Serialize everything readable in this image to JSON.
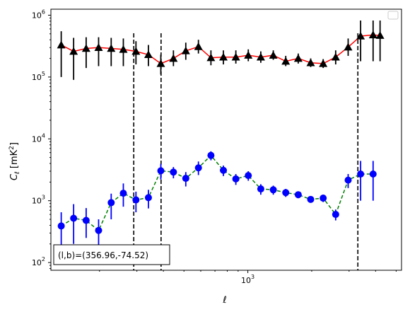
{
  "chart_data": {
    "type": "scatter",
    "title": "",
    "xlabel": "ℓ",
    "ylabel": "C_ℓ  [mK²]",
    "xscale": "log",
    "yscale": "log",
    "xlim": [
      118,
      5300
    ],
    "ylim": [
      75,
      1250000
    ],
    "grid": false,
    "legend": "top-right (empty)",
    "x_ticks": [
      {
        "value": 1000,
        "base": "10",
        "exp": "3"
      }
    ],
    "y_ticks": [
      {
        "value": 100,
        "base": "10",
        "exp": "2"
      },
      {
        "value": 1000,
        "base": "10",
        "exp": "3"
      },
      {
        "value": 10000,
        "base": "10",
        "exp": "4"
      },
      {
        "value": 100000,
        "base": "10",
        "exp": "5"
      },
      {
        "value": 1000000,
        "base": "10",
        "exp": "6"
      }
    ],
    "vlines": [
      290,
      390,
      3300
    ],
    "annotation": "(l,b)=(356.96,-74.52)",
    "series": [
      {
        "marker": "triangle",
        "color": "#000000",
        "line_color": "#ff0000",
        "line_style": "solid",
        "x": [
          132,
          151,
          173,
          198,
          227,
          259,
          297,
          340,
          389,
          446,
          510,
          585,
          670,
          767,
          878,
          1005,
          1151,
          1318,
          1509,
          1728,
          1978,
          2265,
          2594,
          2970,
          3400,
          3894,
          4200
        ],
        "y": [
          330000,
          260000,
          290000,
          300000,
          290000,
          280000,
          260000,
          230000,
          165000,
          200000,
          265000,
          310000,
          205000,
          210000,
          210000,
          225000,
          210000,
          225000,
          180000,
          200000,
          170000,
          165000,
          210000,
          305000,
          460000,
          480000,
          470000
        ],
        "y_low": [
          100000,
          90000,
          140000,
          150000,
          150000,
          150000,
          160000,
          150000,
          110000,
          150000,
          190000,
          240000,
          155000,
          160000,
          165000,
          180000,
          170000,
          190000,
          150000,
          165000,
          145000,
          140000,
          160000,
          220000,
          180000,
          180000,
          180000
        ],
        "y_high": [
          550000,
          430000,
          440000,
          440000,
          430000,
          420000,
          380000,
          330000,
          230000,
          270000,
          360000,
          400000,
          270000,
          270000,
          270000,
          280000,
          260000,
          270000,
          220000,
          240000,
          200000,
          195000,
          270000,
          420000,
          820000,
          820000,
          820000
        ]
      },
      {
        "marker": "circle",
        "color": "#0000ff",
        "line_color": "#008000",
        "line_style": "dashed",
        "x": [
          132,
          151,
          173,
          198,
          227,
          259,
          297,
          340,
          389,
          446,
          510,
          585,
          670,
          767,
          878,
          1005,
          1151,
          1318,
          1509,
          1728,
          1978,
          2265,
          2594,
          2970,
          3400,
          3894
        ],
        "y": [
          390,
          520,
          480,
          330,
          930,
          1320,
          1030,
          1120,
          3050,
          2900,
          2300,
          3400,
          5400,
          3100,
          2250,
          2550,
          1550,
          1500,
          1350,
          1250,
          1050,
          1100,
          600,
          2150,
          2700,
          2700
        ],
        "y_low": [
          150,
          200,
          250,
          150,
          500,
          800,
          650,
          750,
          2200,
          2300,
          1700,
          2600,
          4500,
          2500,
          1800,
          2100,
          1250,
          1250,
          1150,
          1100,
          950,
          950,
          480,
          1600,
          1000,
          1000
        ],
        "y_high": [
          650,
          880,
          760,
          500,
          1300,
          1900,
          1400,
          1500,
          3950,
          3500,
          2900,
          4300,
          6300,
          3700,
          2700,
          3000,
          1850,
          1750,
          1550,
          1400,
          1150,
          1250,
          720,
          2700,
          4400,
          4400
        ]
      }
    ]
  }
}
